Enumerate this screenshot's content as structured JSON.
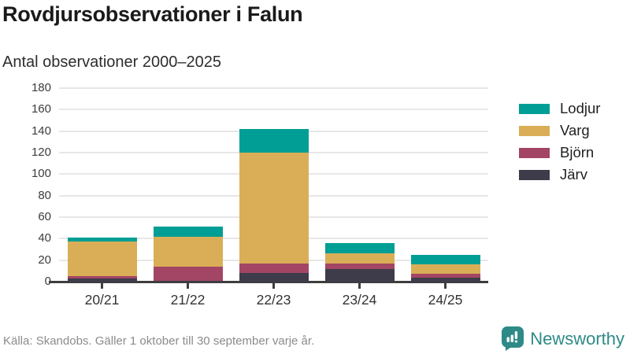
{
  "header": {
    "title": "Rovdjursobservationer i Falun",
    "subtitle": "Antal observationer 2000–2025"
  },
  "chart_data": {
    "type": "bar",
    "stacked": true,
    "title": "Rovdjursobservationer i Falun",
    "subtitle": "Antal observationer 2000–2025",
    "categories": [
      "20/21",
      "21/22",
      "22/23",
      "23/24",
      "24/25"
    ],
    "series": [
      {
        "name": "Järv",
        "color": "#3e3c4b",
        "values": [
          3,
          1,
          8,
          12,
          4
        ]
      },
      {
        "name": "Björn",
        "color": "#a34564",
        "values": [
          2,
          13,
          9,
          5,
          3
        ]
      },
      {
        "name": "Varg",
        "color": "#d9ae57",
        "values": [
          32,
          28,
          103,
          9,
          9
        ]
      },
      {
        "name": "Lodjur",
        "color": "#009e94",
        "values": [
          4,
          9,
          22,
          10,
          9
        ]
      }
    ],
    "totals": [
      41,
      51,
      142,
      36,
      25
    ],
    "ylim": [
      0,
      180
    ],
    "ytick_step": 20,
    "grid": true,
    "legend_position": "right",
    "legend_order": [
      "Lodjur",
      "Varg",
      "Björn",
      "Järv"
    ],
    "axis_color": "#3d3d3d",
    "gridline_color": "#e7e7e7"
  },
  "footer": {
    "source": "Källa: Skandobs. Gäller 1 oktober till 30 september varje år."
  },
  "branding": {
    "label": "Newsworthy",
    "color": "#2e8a86",
    "icon": "newsworthy-logo"
  }
}
